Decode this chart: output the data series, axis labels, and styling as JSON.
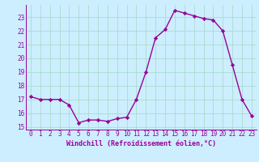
{
  "x": [
    0,
    1,
    2,
    3,
    4,
    5,
    6,
    7,
    8,
    9,
    10,
    11,
    12,
    13,
    14,
    15,
    16,
    17,
    18,
    19,
    20,
    21,
    22,
    23
  ],
  "y": [
    17.2,
    17.0,
    17.0,
    17.0,
    16.6,
    15.3,
    15.5,
    15.5,
    15.4,
    15.6,
    15.7,
    17.0,
    19.0,
    21.5,
    22.1,
    23.5,
    23.3,
    23.1,
    22.9,
    22.8,
    22.0,
    19.5,
    17.0,
    15.8
  ],
  "line_color": "#990099",
  "marker": "D",
  "marker_size": 2.2,
  "bg_color": "#cceeff",
  "grid_color": "#aaddcc",
  "xlabel": "Windchill (Refroidissement éolien,°C)",
  "xlabel_fontsize": 6.0,
  "ylim": [
    14.8,
    23.9
  ],
  "yticks": [
    15,
    16,
    17,
    18,
    19,
    20,
    21,
    22,
    23
  ],
  "xticks": [
    0,
    1,
    2,
    3,
    4,
    5,
    6,
    7,
    8,
    9,
    10,
    11,
    12,
    13,
    14,
    15,
    16,
    17,
    18,
    19,
    20,
    21,
    22,
    23
  ],
  "tick_fontsize": 5.5,
  "line_width": 1.0
}
